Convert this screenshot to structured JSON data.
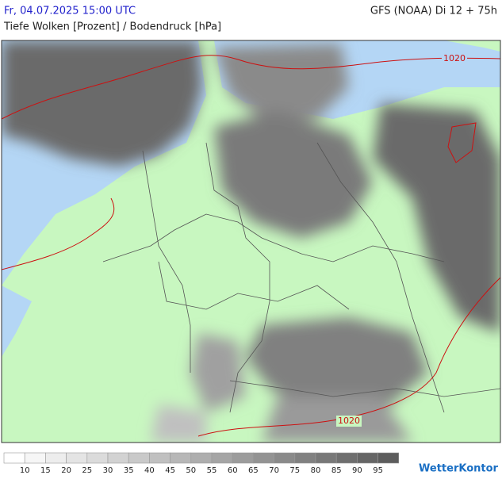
{
  "header": {
    "datetime": "Fr, 04.07.2025 15:00 UTC",
    "model": "GFS (NOAA) Di 12 + 75h",
    "subtitle": "Tiefe Wolken [Prozent] / Bodendruck [hPa]"
  },
  "map": {
    "isobar_labels": [
      "1020",
      "1020"
    ]
  },
  "legend": {
    "labels": [
      10,
      15,
      20,
      25,
      30,
      35,
      40,
      45,
      50,
      55,
      60,
      65,
      70,
      75,
      80,
      85,
      90,
      95
    ],
    "colors": [
      "#ffffff",
      "#f6f6f6",
      "#ededed",
      "#e4e4e4",
      "#dbdbdb",
      "#d2d2d2",
      "#c9c9c9",
      "#c0c0c0",
      "#b7b7b7",
      "#aeaeae",
      "#a5a5a5",
      "#9c9c9c",
      "#939393",
      "#8a8a8a",
      "#818181",
      "#787878",
      "#6f6f6f",
      "#666666",
      "#5d5d5d"
    ]
  },
  "logo": "WetterKontor"
}
